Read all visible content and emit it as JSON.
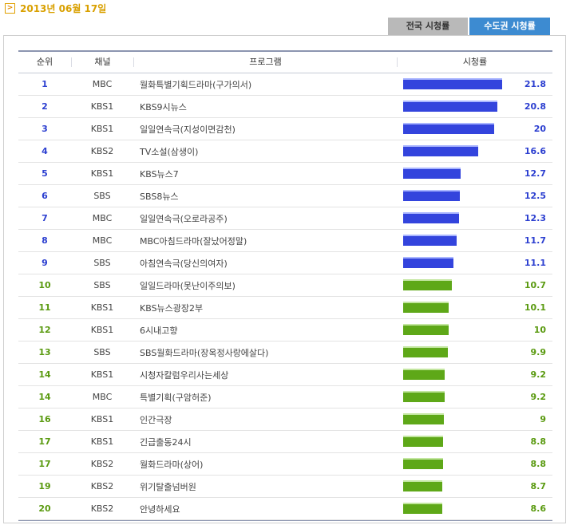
{
  "date": "2013년 06월 17일",
  "tabs": {
    "national": "전국 시청률",
    "capital": "수도권 시청률"
  },
  "header": {
    "rank": "순위",
    "channel": "채널",
    "program": "프로그램",
    "rating": "시청률"
  },
  "colors": {
    "top_bar": "#3344dd",
    "rest_bar": "#5ea818",
    "tab_active": "#3d8bd1"
  },
  "max_rating": 21.8,
  "rows": [
    {
      "rank": "1",
      "channel": "MBC",
      "program": "월화특별기획드라마(구가의서)",
      "rating": "21.8",
      "group": "blue"
    },
    {
      "rank": "2",
      "channel": "KBS1",
      "program": "KBS9시뉴스",
      "rating": "20.8",
      "group": "blue"
    },
    {
      "rank": "3",
      "channel": "KBS1",
      "program": "일일연속극(지성이면감천)",
      "rating": "20",
      "group": "blue"
    },
    {
      "rank": "4",
      "channel": "KBS2",
      "program": "TV소설(삼생이)",
      "rating": "16.6",
      "group": "blue"
    },
    {
      "rank": "5",
      "channel": "KBS1",
      "program": "KBS뉴스7",
      "rating": "12.7",
      "group": "blue"
    },
    {
      "rank": "6",
      "channel": "SBS",
      "program": "SBS8뉴스",
      "rating": "12.5",
      "group": "blue"
    },
    {
      "rank": "7",
      "channel": "MBC",
      "program": "일일연속극(오로라공주)",
      "rating": "12.3",
      "group": "blue"
    },
    {
      "rank": "8",
      "channel": "MBC",
      "program": "MBC아침드라마(잘났어정말)",
      "rating": "11.7",
      "group": "blue"
    },
    {
      "rank": "9",
      "channel": "SBS",
      "program": "아침연속극(당신의여자)",
      "rating": "11.1",
      "group": "blue"
    },
    {
      "rank": "10",
      "channel": "SBS",
      "program": "일일드라마(못난이주의보)",
      "rating": "10.7",
      "group": "green"
    },
    {
      "rank": "11",
      "channel": "KBS1",
      "program": "KBS뉴스광장2부",
      "rating": "10.1",
      "group": "green"
    },
    {
      "rank": "12",
      "channel": "KBS1",
      "program": "6시내고향",
      "rating": "10",
      "group": "green"
    },
    {
      "rank": "13",
      "channel": "SBS",
      "program": "SBS월화드라마(장옥정사랑에살다)",
      "rating": "9.9",
      "group": "green"
    },
    {
      "rank": "14",
      "channel": "KBS1",
      "program": "시청자칼럼우리사는세상",
      "rating": "9.2",
      "group": "green"
    },
    {
      "rank": "14",
      "channel": "MBC",
      "program": "특별기획(구암허준)",
      "rating": "9.2",
      "group": "green"
    },
    {
      "rank": "16",
      "channel": "KBS1",
      "program": "인간극장",
      "rating": "9",
      "group": "green"
    },
    {
      "rank": "17",
      "channel": "KBS1",
      "program": "긴급출동24시",
      "rating": "8.8",
      "group": "green"
    },
    {
      "rank": "17",
      "channel": "KBS2",
      "program": "월화드라마(상어)",
      "rating": "8.8",
      "group": "green"
    },
    {
      "rank": "19",
      "channel": "KBS2",
      "program": "위기탈출넘버원",
      "rating": "8.7",
      "group": "green"
    },
    {
      "rank": "20",
      "channel": "KBS2",
      "program": "안녕하세요",
      "rating": "8.6",
      "group": "green"
    }
  ]
}
